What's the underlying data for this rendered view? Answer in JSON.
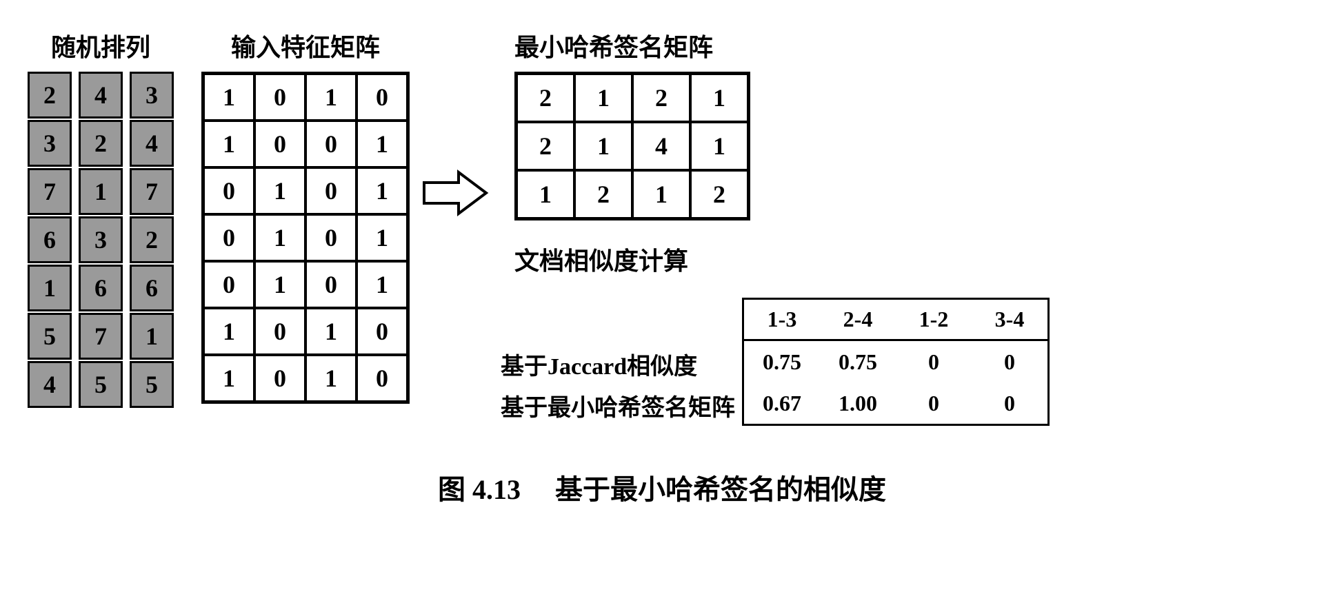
{
  "titles": {
    "perm": "随机排列",
    "feat": "输入特征矩阵",
    "sig": "最小哈希签名矩阵",
    "sim": "文档相似度计算"
  },
  "perm": {
    "cols": [
      [
        2,
        3,
        7,
        6,
        1,
        5,
        4
      ],
      [
        4,
        2,
        1,
        3,
        6,
        7,
        5
      ],
      [
        3,
        4,
        7,
        2,
        6,
        1,
        5
      ]
    ],
    "cell_bg": "#9a9a9a"
  },
  "feat": {
    "rows": [
      [
        1,
        0,
        1,
        0
      ],
      [
        1,
        0,
        0,
        1
      ],
      [
        0,
        1,
        0,
        1
      ],
      [
        0,
        1,
        0,
        1
      ],
      [
        0,
        1,
        0,
        1
      ],
      [
        1,
        0,
        1,
        0
      ],
      [
        1,
        0,
        1,
        0
      ]
    ]
  },
  "sig": {
    "rows": [
      [
        2,
        1,
        2,
        1
      ],
      [
        2,
        1,
        4,
        1
      ],
      [
        1,
        2,
        1,
        2
      ]
    ]
  },
  "similarity": {
    "col_headers": [
      "1-3",
      "2-4",
      "1-2",
      "3-4"
    ],
    "row_labels": [
      "基于Jaccard相似度",
      "基于最小哈希签名矩阵"
    ],
    "rows": [
      [
        "0.75",
        "0.75",
        "0",
        "0"
      ],
      [
        "0.67",
        "1.00",
        "0",
        "0"
      ]
    ]
  },
  "caption": {
    "num": "图 4.13",
    "text": "基于最小哈希签名的相似度"
  },
  "style": {
    "border_color": "#000000",
    "background": "#ffffff",
    "font_main_size": 36
  }
}
